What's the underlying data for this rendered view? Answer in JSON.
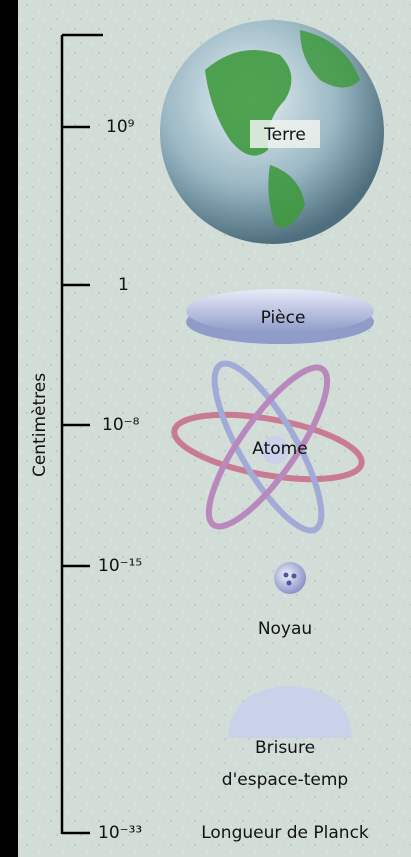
{
  "axis": {
    "title": "Centimètres",
    "ticks": [
      "10⁹",
      "1",
      "10⁻⁸",
      "10⁻¹⁵",
      "10⁻³³"
    ]
  },
  "objects": [
    {
      "label": "Terre"
    },
    {
      "label": "Pièce"
    },
    {
      "label": "Atome"
    },
    {
      "label": "Noyau"
    },
    {
      "lines": [
        "Brisure",
        "d'espace-temp"
      ]
    },
    {
      "label": "Longueur de Planck"
    }
  ]
}
